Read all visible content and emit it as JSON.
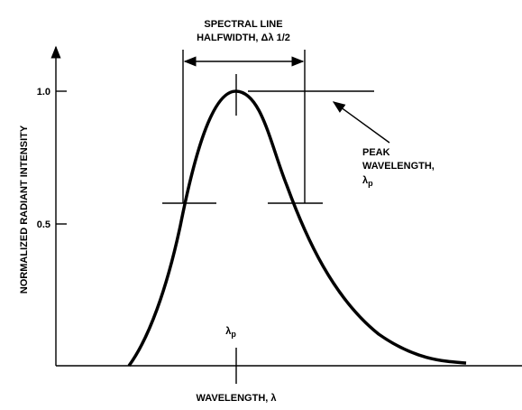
{
  "title": {
    "line1": "SPECTRAL LINE",
    "line2": "HALFWIDTH, Δλ 1/2"
  },
  "y_axis": {
    "label": "NORMALIZED RADIANT INTENSITY",
    "ticks": [
      "1.0",
      "0.5"
    ]
  },
  "peak_label": {
    "line1": "PEAK",
    "line2": "WAVELENGTH,",
    "symbol": "λ",
    "subscript": "p"
  },
  "peak_marker": {
    "symbol": "λ",
    "subscript": "p"
  },
  "x_axis": {
    "label": "WAVELENGTH, λ"
  }
}
